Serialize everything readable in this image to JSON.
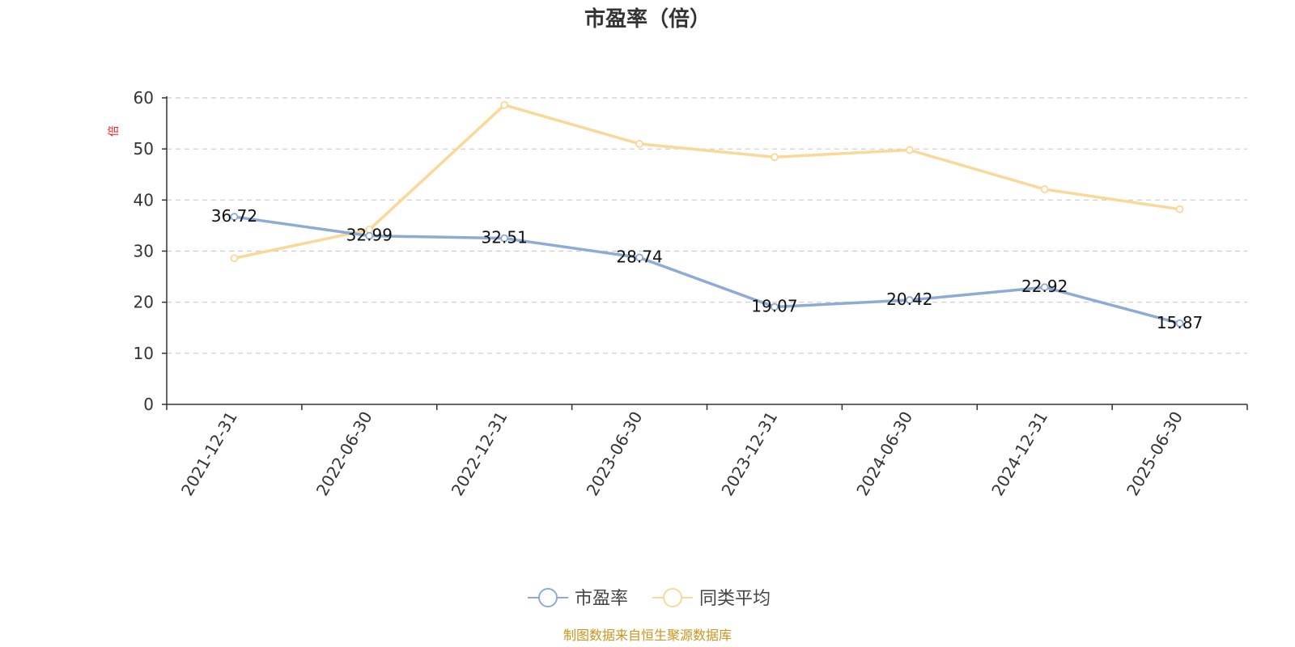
{
  "chart_data": {
    "type": "line",
    "title": "市盈率（倍）",
    "ylabel": "倍",
    "xlabel": "",
    "categories": [
      "2021-12-31",
      "2022-06-30",
      "2022-12-31",
      "2023-06-30",
      "2023-12-31",
      "2024-06-30",
      "2024-12-31",
      "2025-06-30"
    ],
    "ylim": [
      0,
      60
    ],
    "yticks": [
      0,
      10,
      20,
      30,
      40,
      50,
      60
    ],
    "grid": true,
    "legend_position": "bottom-center",
    "series": [
      {
        "name": "市盈率",
        "color": "#8eabd6",
        "values": [
          36.72,
          32.99,
          32.51,
          28.74,
          19.07,
          20.42,
          22.92,
          15.87
        ],
        "labels": [
          "36.72",
          "32.99",
          "32.51",
          "28.74",
          "19.07",
          "20.42",
          "22.92",
          "15.87"
        ]
      },
      {
        "name": "同类平均",
        "color": "#f9d898",
        "values": [
          28.6,
          34.2,
          58.6,
          51.0,
          48.4,
          49.8,
          42.1,
          38.2
        ]
      }
    ]
  },
  "source_note": "制图数据来自恒生聚源数据库"
}
